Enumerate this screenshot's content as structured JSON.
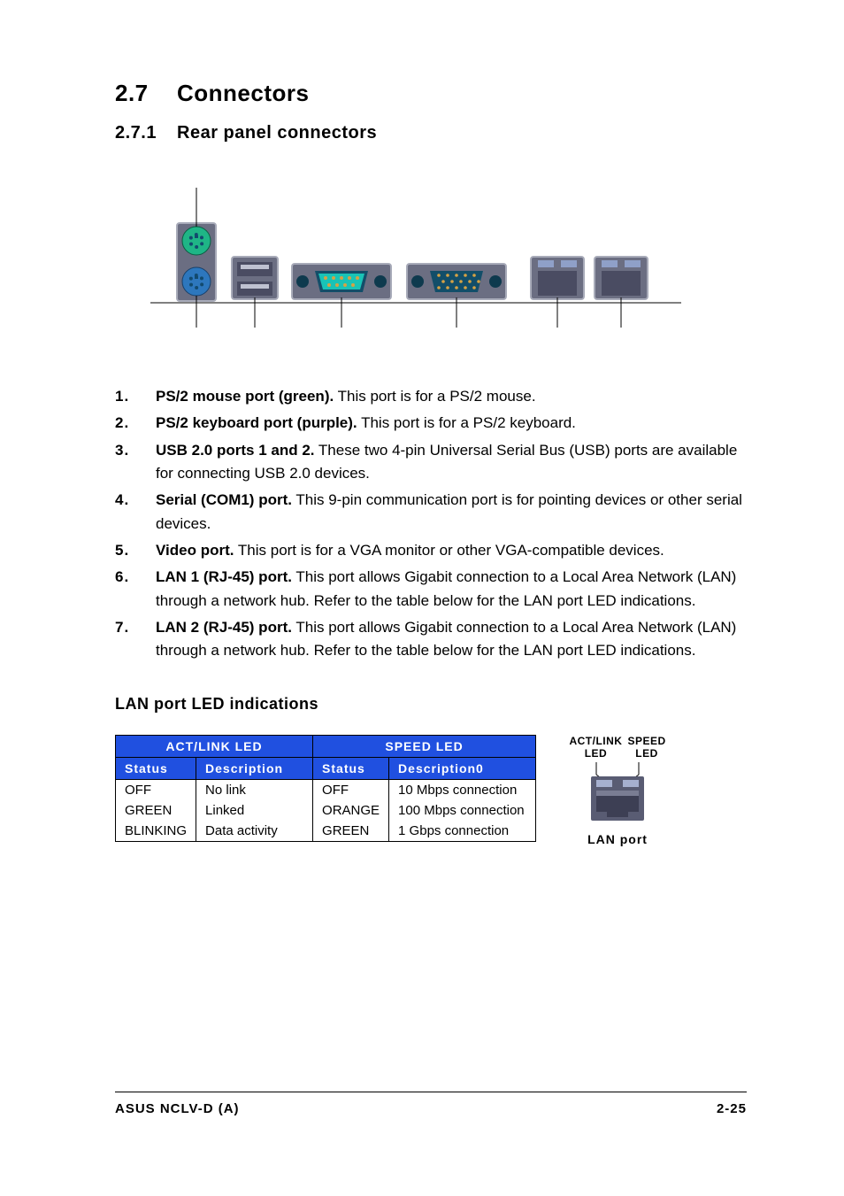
{
  "section": {
    "number": "2.7",
    "title": "Connectors"
  },
  "subsection": {
    "number": "2.7.1",
    "title": "Rear panel connectors"
  },
  "diagram": {
    "backplate_fill": "#6b6e82",
    "backplate_stroke": "#a8abb9",
    "ps2_mouse_fill": "#1fb586",
    "ps2_keyboard_fill": "#2d77bd",
    "ps2_pin_fill": "#124a6e",
    "usb_fill": "#4a4c62",
    "usb_slot_fill": "#bfc2d1",
    "serial_outer_fill": "#124e69",
    "serial_inner_fill": "#19c3b6",
    "serial_pin_fill": "#d6a244",
    "screw_fill": "#0e3a4e",
    "vga_outer_fill": "#124e69",
    "vga_inner_fill": "#124e69",
    "vga_pin_fill": "#d6a244",
    "lan_fill": "#4a4c62",
    "lan_led_left": "#8fa0c8",
    "lan_led_right": "#8fa0c8",
    "leader_stroke": "#000000"
  },
  "ports": [
    {
      "num": "1.",
      "bold": "PS/2 mouse port (green).",
      "rest": " This port is for a PS/2 mouse."
    },
    {
      "num": "2.",
      "bold": "PS/2 keyboard port (purple).",
      "rest": " This port is for a PS/2 keyboard."
    },
    {
      "num": "3.",
      "bold": "USB 2.0 ports 1 and 2.",
      "rest": " These two 4-pin Universal Serial Bus (USB) ports are available for connecting USB 2.0 devices."
    },
    {
      "num": "4.",
      "bold": "Serial (COM1) port.",
      "rest": " This 9-pin communication port is for pointing devices or other serial devices."
    },
    {
      "num": "5.",
      "bold": "Video port.",
      "rest": " This port is for a VGA monitor or other VGA-compatible devices."
    },
    {
      "num": "6.",
      "bold": "LAN 1 (RJ-45) port.",
      "rest": " This port allows Gigabit connection to a Local Area Network (LAN) through a network hub. Refer to the table below for the LAN port LED indications."
    },
    {
      "num": "7.",
      "bold": "LAN 2 (RJ-45) port.",
      "rest": " This port allows Gigabit connection to a Local Area Network (LAN) through a network hub. Refer to the table below for the LAN port LED indications."
    }
  ],
  "led_section_title": "LAN port LED indications",
  "table": {
    "header_bg": "#2050e0",
    "header_fg": "#ffffff",
    "top_headers": [
      "ACT/LINK LED",
      "SPEED LED"
    ],
    "sub_headers": [
      "Status",
      "Description",
      "Status",
      "Description0"
    ],
    "rows": [
      [
        "OFF",
        "No link",
        "OFF",
        "10 Mbps connection"
      ],
      [
        "GREEN",
        "Linked",
        "ORANGE",
        "100 Mbps connection"
      ],
      [
        "BLINKING",
        "Data activity",
        "GREEN",
        "1 Gbps connection"
      ]
    ]
  },
  "lan_diagram": {
    "left_label_top": "ACT/LINK",
    "left_label_bot": "LED",
    "right_label_top": "SPEED",
    "right_label_bot": "LED",
    "port_label": "LAN port",
    "body_fill": "#3d3f54",
    "body_light": "#7a7d93",
    "led_fill": "#a6b0cf",
    "plate_fill": "#595c73"
  },
  "footer": {
    "left": "ASUS NCLV-D (A)",
    "right": "2-25"
  }
}
